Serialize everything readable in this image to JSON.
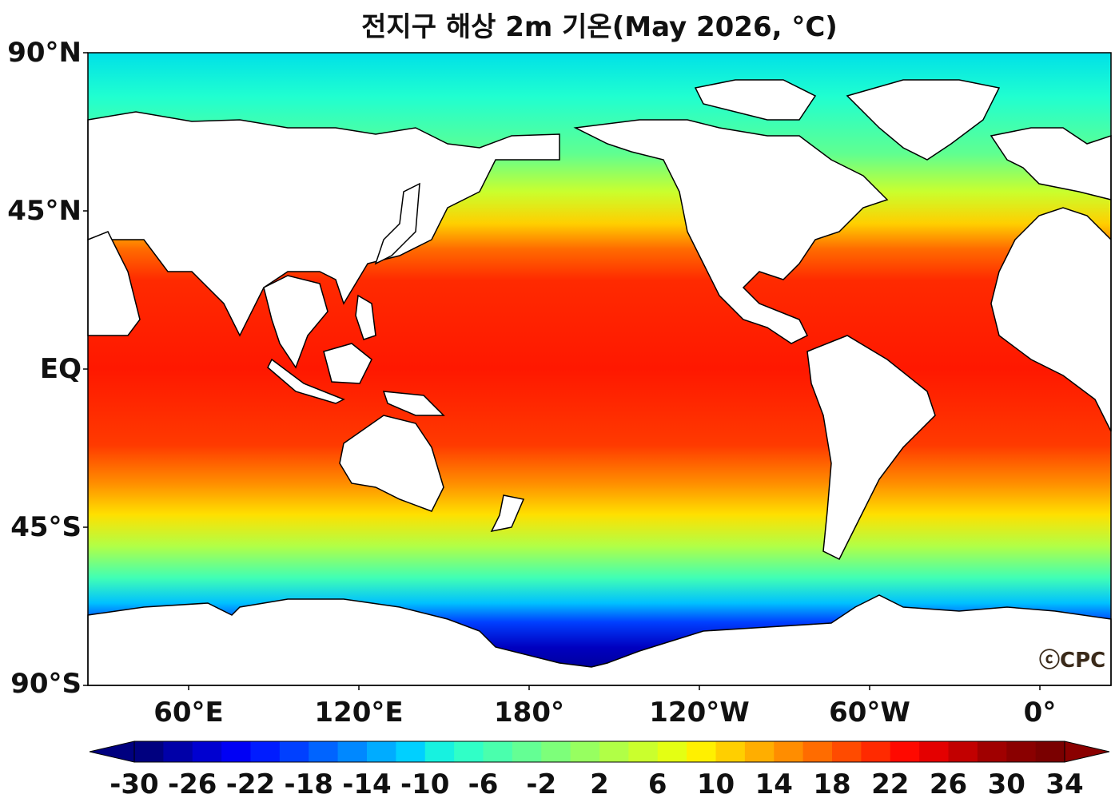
{
  "title": "전지구 해상 2m 기온(May 2026, °C)",
  "logo": "ⓒCPC",
  "lat_labels": [
    "90°N",
    "45°N",
    "EQ",
    "45°S",
    "90°S"
  ],
  "lon_labels": [
    "60°E",
    "120°E",
    "180°",
    "120°W",
    "60°W",
    "0°"
  ],
  "colorbar": {
    "ticks": [
      "-30",
      "-26",
      "-22",
      "-18",
      "-14",
      "-10",
      "-6",
      "-2",
      "2",
      "6",
      "10",
      "14",
      "18",
      "22",
      "26",
      "30",
      "34"
    ],
    "min": -30,
    "max": 34,
    "step": 2,
    "colors": [
      "#00007f",
      "#0000a8",
      "#0000d0",
      "#0000f5",
      "#001cff",
      "#0040ff",
      "#0064ff",
      "#0088ff",
      "#00acff",
      "#00d0ff",
      "#17f2e0",
      "#30ffc7",
      "#4affad",
      "#64ff94",
      "#7dff7a",
      "#97ff60",
      "#b1ff46",
      "#caff2d",
      "#e4ff13",
      "#fff000",
      "#ffcf00",
      "#ffae00",
      "#ff8d00",
      "#ff6c00",
      "#ff4b00",
      "#ff2a00",
      "#ff0900",
      "#e40000",
      "#c20000",
      "#a00000",
      "#8a0000",
      "#7a0000"
    ]
  }
}
